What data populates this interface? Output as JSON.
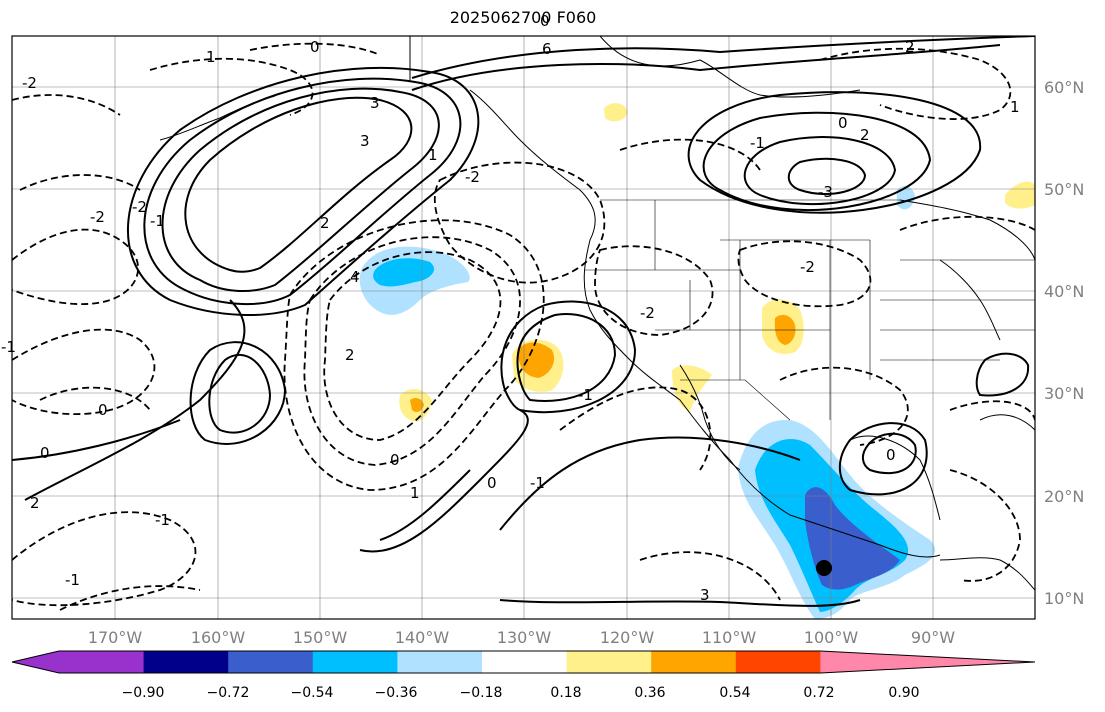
{
  "title": "2025062700 F060",
  "map": {
    "latitude_labels": [
      "60°N",
      "50°N",
      "40°N",
      "30°N",
      "20°N",
      "10°N"
    ],
    "longitude_labels": [
      "170°W",
      "160°W",
      "150°W",
      "140°W",
      "130°W",
      "120°W",
      "110°W",
      "100°W",
      "90°W"
    ],
    "contour_labels": [
      "-2",
      "-2",
      "-2",
      "-2",
      "-2",
      "-2",
      "-1",
      "-1",
      "-1",
      "-1",
      "-1",
      "-1",
      "0",
      "0",
      "0",
      "0",
      "0",
      "0",
      "0",
      "1",
      "1",
      "1",
      "1",
      "2",
      "2",
      "2",
      "2",
      "2",
      "3",
      "3",
      "3",
      "4",
      "6",
      "-3",
      "-1",
      "0"
    ],
    "marker": {
      "type": "dot",
      "color": "#000000",
      "description_shown": false
    }
  },
  "colorbar": {
    "tick_labels": [
      "−0.90",
      "−0.72",
      "−0.54",
      "−0.36",
      "−0.18",
      "0.18",
      "0.36",
      "0.54",
      "0.72",
      "0.90"
    ],
    "colors": [
      "#9932cc",
      "#00008b",
      "#3a5fcd",
      "#00bfff",
      "#b0e2ff",
      "#ffffff",
      "#fff08c",
      "#ffa500",
      "#ff4500",
      "#b22222",
      "#ff88aa"
    ]
  }
}
